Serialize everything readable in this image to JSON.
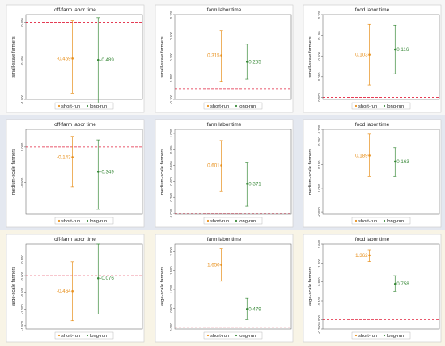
{
  "colors": {
    "short_run": "#e8901c",
    "long_run": "#3a8a3a",
    "zero_line": "#e0203c",
    "band_small": "#f6f6f6",
    "band_medium": "#e4e8f0",
    "band_large": "#f8f4e6"
  },
  "legend": {
    "short_run": "short-run",
    "long_run": "long-run"
  },
  "chart_data": [
    {
      "type": "scatter",
      "title": "off-farm labor time",
      "ylabel": "small-scale farmers",
      "ylim": [
        -1.0,
        0.1
      ],
      "yticks": [
        "0.000",
        "-0.500",
        "-1.000"
      ],
      "ytick_values": [
        0,
        -0.5,
        -1.0
      ],
      "zero": 0,
      "series": [
        {
          "name": "short-run",
          "value": -0.469,
          "label": "-0.469",
          "ci": [
            -0.92,
            0.02
          ]
        },
        {
          "name": "long-run",
          "value": -0.489,
          "label": "-0.489",
          "ci": [
            -1.05,
            0.06
          ]
        }
      ]
    },
    {
      "type": "scatter",
      "title": "farm labor time",
      "ylabel": "small-scale farmers",
      "ylim": [
        -0.1,
        0.7
      ],
      "yticks": [
        "0.700",
        "0.500",
        "0.300",
        "0.100",
        "-0.100"
      ],
      "ytick_values": [
        0.7,
        0.5,
        0.3,
        0.1,
        -0.1
      ],
      "zero": 0,
      "series": [
        {
          "name": "short-run",
          "value": 0.315,
          "label": "0.315",
          "ci": [
            0.07,
            0.55
          ]
        },
        {
          "name": "long-run",
          "value": 0.255,
          "label": "0.255",
          "ci": [
            0.09,
            0.42
          ]
        }
      ]
    },
    {
      "type": "scatter",
      "title": "food labor time",
      "ylabel": "small-scale farmers",
      "ylim": [
        -0.005,
        0.2
      ],
      "yticks": [
        "0.200",
        "0.150",
        "0.100",
        "0.050",
        "0.000"
      ],
      "ytick_values": [
        0.2,
        0.15,
        0.1,
        0.05,
        0.0
      ],
      "zero": 0,
      "series": [
        {
          "name": "short-run",
          "value": 0.103,
          "label": "0.103",
          "ci": [
            0.03,
            0.176
          ]
        },
        {
          "name": "long-run",
          "value": 0.116,
          "label": "0.116",
          "ci": [
            0.057,
            0.174
          ]
        }
      ]
    },
    {
      "type": "scatter",
      "title": "off-farm labor time",
      "ylabel": "medium-scale farmers",
      "ylim": [
        -0.95,
        0.25
      ],
      "yticks": [
        "0.000",
        "-0.500"
      ],
      "ytick_values": [
        0,
        -0.5
      ],
      "zero": 0,
      "series": [
        {
          "name": "short-run",
          "value": -0.143,
          "label": "-0.143",
          "ci": [
            -0.56,
            0.15
          ]
        },
        {
          "name": "long-run",
          "value": -0.349,
          "label": "-0.349",
          "ci": [
            -0.88,
            0.1
          ]
        }
      ]
    },
    {
      "type": "scatter",
      "title": "farm labor time",
      "ylabel": "medium-scale farmers",
      "ylim": [
        -0.01,
        1.05
      ],
      "yticks": [
        "1.000",
        "0.800",
        "0.600",
        "0.400",
        "0.200",
        "0.000"
      ],
      "ytick_values": [
        1.0,
        0.8,
        0.6,
        0.4,
        0.2,
        0.0
      ],
      "zero": 0,
      "series": [
        {
          "name": "short-run",
          "value": 0.601,
          "label": "0.601",
          "ci": [
            0.28,
            0.91
          ]
        },
        {
          "name": "long-run",
          "value": 0.371,
          "label": "0.371",
          "ci": [
            0.09,
            0.63
          ]
        }
      ]
    },
    {
      "type": "scatter",
      "title": "food labor time",
      "ylabel": "medium-scale farmers",
      "ylim": [
        -0.06,
        0.3
      ],
      "yticks": [
        "0.300",
        "0.250",
        "0.150",
        "0.050",
        "-0.050"
      ],
      "ytick_values": [
        0.3,
        0.25,
        0.15,
        0.05,
        -0.05
      ],
      "zero": 0,
      "series": [
        {
          "name": "short-run",
          "value": 0.189,
          "label": "0.189",
          "ci": [
            0.1,
            0.28
          ]
        },
        {
          "name": "long-run",
          "value": 0.163,
          "label": "0.163",
          "ci": [
            0.1,
            0.222
          ]
        }
      ]
    },
    {
      "type": "scatter",
      "title": "off-farm labor time",
      "ylabel": "large-scale farmers",
      "ylim": [
        -1.6,
        0.95
      ],
      "yticks": [
        "0.500",
        "0.000",
        "-0.500",
        "-1.000",
        "-1.500"
      ],
      "ytick_values": [
        0.5,
        0.0,
        -0.5,
        -1.0,
        -1.5
      ],
      "zero": 0,
      "series": [
        {
          "name": "short-run",
          "value": -0.464,
          "label": "-0.464",
          "ci": [
            -1.35,
            0.42
          ]
        },
        {
          "name": "long-run",
          "value": -0.076,
          "label": "-0.076",
          "ci": [
            -1.15,
            0.95
          ]
        }
      ]
    },
    {
      "type": "scatter",
      "title": "farm labor time",
      "ylabel": "large-scale farmers",
      "ylim": [
        -0.05,
        2.2
      ],
      "yticks": [
        "2.000",
        "1.500",
        "1.000",
        "0.500",
        "0.000"
      ],
      "ytick_values": [
        2.0,
        1.5,
        1.0,
        0.5,
        0.0
      ],
      "zero": 0,
      "series": [
        {
          "name": "short-run",
          "value": 1.65,
          "label": "1.650",
          "ci": [
            1.22,
            2.08
          ]
        },
        {
          "name": "long-run",
          "value": 0.479,
          "label": "0.479",
          "ci": [
            0.2,
            0.76
          ]
        }
      ]
    },
    {
      "type": "scatter",
      "title": "food labor time",
      "ylabel": "large-scale farmers",
      "ylim": [
        -0.2,
        1.6
      ],
      "yticks": [
        "1.600",
        "1.200",
        "0.800",
        "0.400",
        "0.000",
        "-0.200"
      ],
      "ytick_values": [
        1.6,
        1.2,
        0.8,
        0.4,
        0.0,
        -0.2
      ],
      "zero": 0,
      "series": [
        {
          "name": "short-run",
          "value": 1.362,
          "label": "1.362",
          "ci": [
            1.23,
            1.48
          ]
        },
        {
          "name": "long-run",
          "value": 0.758,
          "label": "0.758",
          "ci": [
            0.6,
            0.93
          ]
        }
      ]
    }
  ]
}
